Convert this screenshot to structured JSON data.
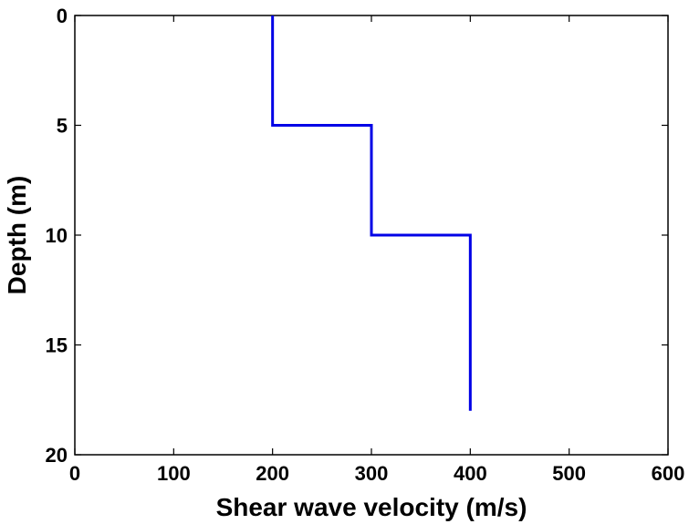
{
  "chart_data": {
    "type": "line",
    "title": "",
    "xlabel": "Shear wave velocity (m/s)",
    "ylabel": "Depth (m)",
    "xlim": [
      0,
      600
    ],
    "ylim": [
      0,
      20
    ],
    "y_axis_reversed": true,
    "grid": false,
    "x_ticks": [
      "0",
      "100",
      "200",
      "300",
      "400",
      "500",
      "600"
    ],
    "y_ticks": [
      "0",
      "5",
      "10",
      "15",
      "20"
    ],
    "series": [
      {
        "color": "#0000e6",
        "points": [
          {
            "x": 200,
            "y": 0
          },
          {
            "x": 200,
            "y": 5
          },
          {
            "x": 300,
            "y": 5
          },
          {
            "x": 300,
            "y": 10
          },
          {
            "x": 400,
            "y": 10
          },
          {
            "x": 400,
            "y": 18
          }
        ]
      }
    ]
  }
}
